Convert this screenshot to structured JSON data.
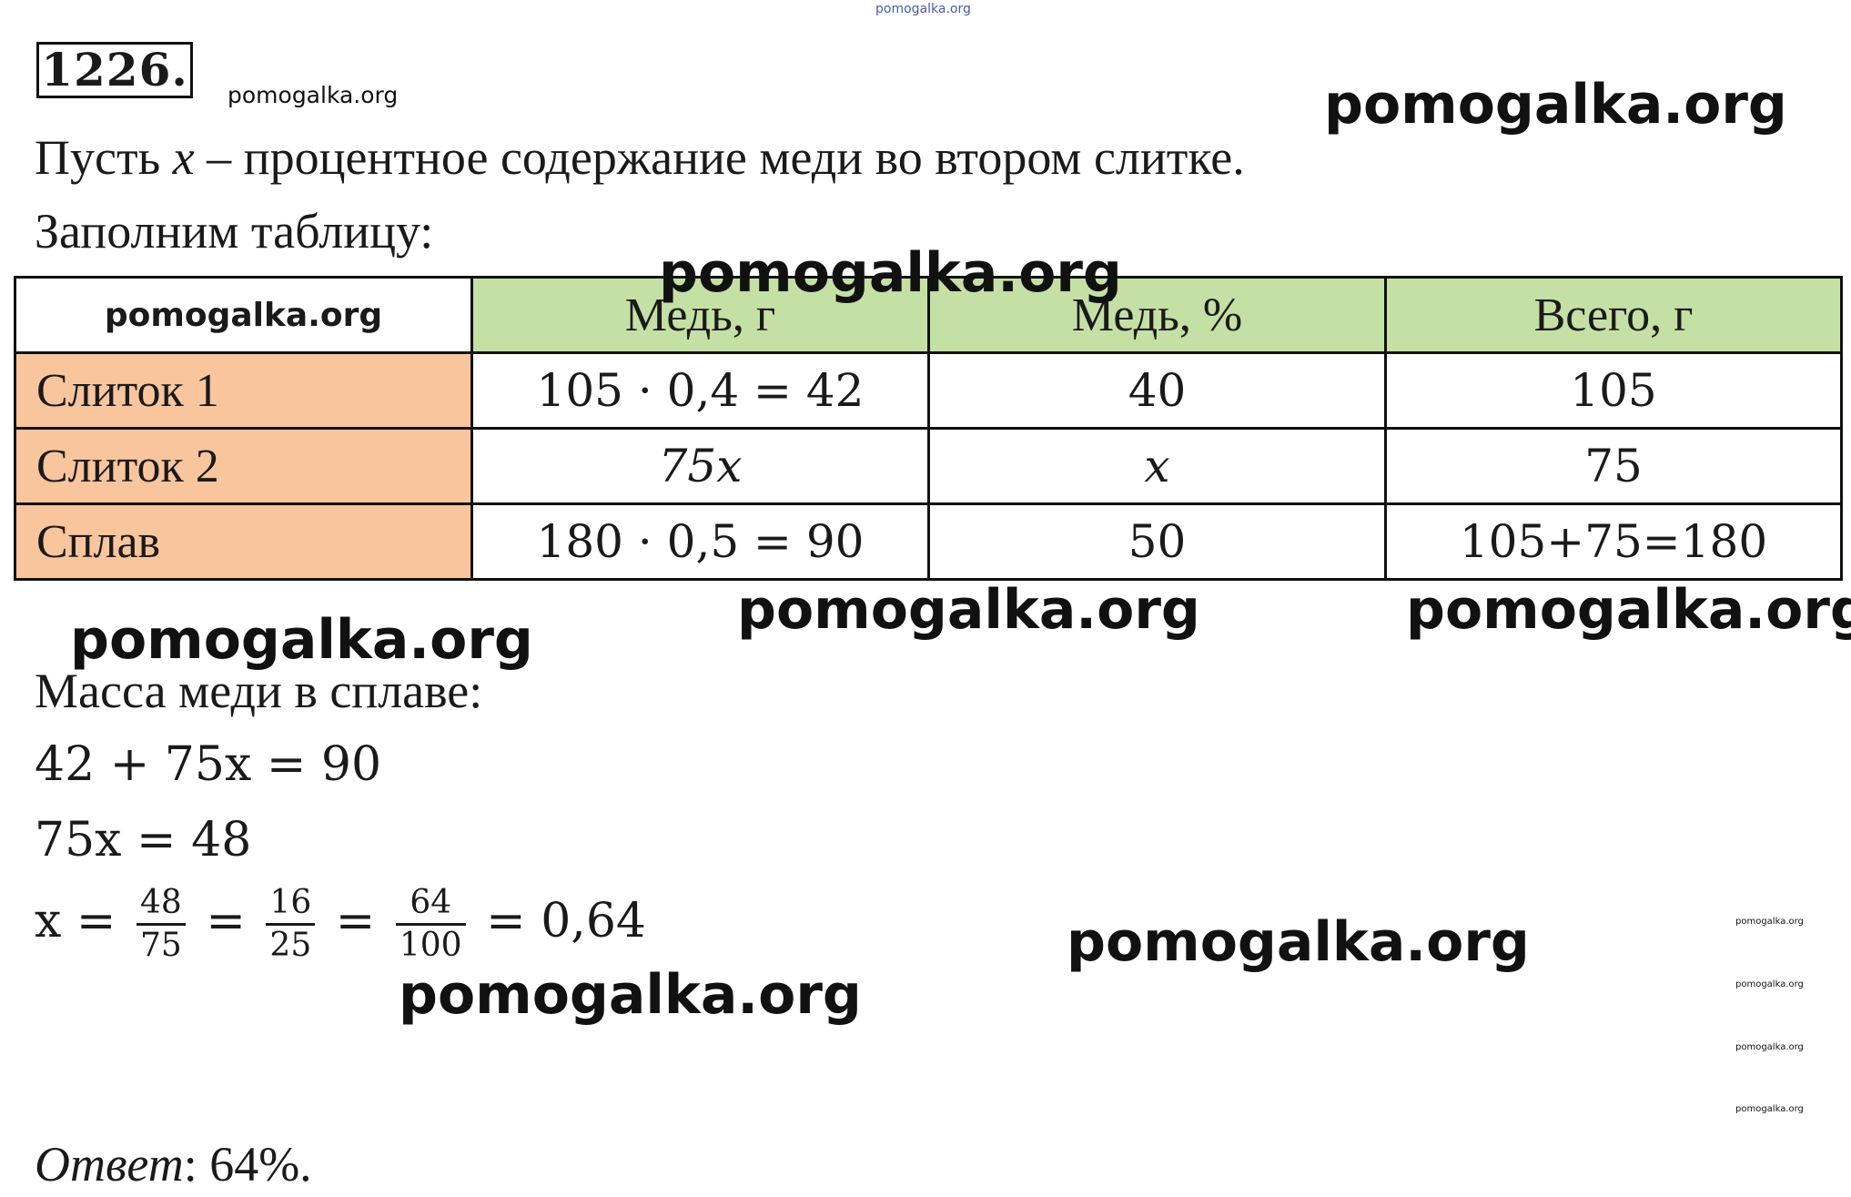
{
  "top_watermark": "pomogalka.org",
  "problem_number": "1226.",
  "watermark_text": "pomogalka.org",
  "intro": {
    "line_before_var": "Пусть ",
    "variable": "x",
    "line_after_var": " – процентное содержание меди во втором слитке.",
    "fill_table": "Заполним таблицу:"
  },
  "table": {
    "corner_label": "pomogalka.org",
    "headers": [
      "Медь, г",
      "Медь, %",
      "Всего, г"
    ],
    "rows": [
      {
        "label": "Слиток 1",
        "cells": [
          "105 · 0,4 = 42",
          "40",
          "105"
        ]
      },
      {
        "label": "Слиток 2",
        "cells": [
          "75x",
          "x",
          "75"
        ]
      },
      {
        "label": "Сплав",
        "cells": [
          "180 · 0,5 = 90",
          "50",
          "105+75=180"
        ]
      }
    ]
  },
  "solution": {
    "mass_label": "Масса меди в сплаве:",
    "eq1": "42 + 75x = 90",
    "eq2": "75x = 48",
    "eq3_lhs": "x =",
    "fractions": [
      {
        "num": "48",
        "den": "75"
      },
      {
        "num": "16",
        "den": "25"
      },
      {
        "num": "64",
        "den": "100"
      }
    ],
    "eq_sign": "=",
    "eq3_result": "= 0,64"
  },
  "answer": {
    "label": "Ответ",
    "value": ": 64%."
  },
  "colors": {
    "header_bg": "#c5e0a5",
    "rowhead_bg": "#f9c59d"
  }
}
